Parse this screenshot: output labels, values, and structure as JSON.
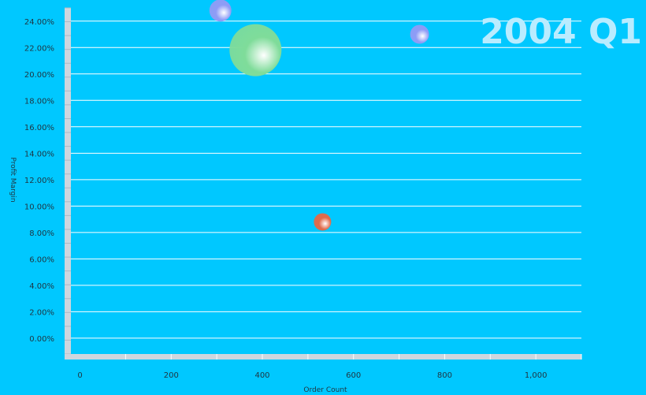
{
  "chart_data": {
    "type": "scatter",
    "subtype": "bubble",
    "period_label": "2004 Q1",
    "xlabel": "Order Count",
    "ylabel": "Profit Margin",
    "xlim": [
      -20,
      1100
    ],
    "ylim": [
      -1.2,
      25
    ],
    "x_ticks": [
      0,
      200,
      400,
      600,
      800,
      1000
    ],
    "x_tick_labels": [
      "0",
      "200",
      "400",
      "600",
      "800",
      "1,000"
    ],
    "y_ticks": [
      0,
      2,
      4,
      6,
      8,
      10,
      12,
      14,
      16,
      18,
      20,
      22,
      24
    ],
    "y_tick_labels": [
      "0.00%",
      "2.00%",
      "4.00%",
      "6.00%",
      "8.00%",
      "10.00%",
      "12.00%",
      "14.00%",
      "16.00%",
      "18.00%",
      "20.00%",
      "22.00%",
      "24.00%"
    ],
    "grid": true,
    "points": [
      {
        "x": 308,
        "y": 24.8,
        "size": 14,
        "color": "#8f9cf6"
      },
      {
        "x": 385,
        "y": 21.8,
        "size": 33,
        "color": "#7fdc9a"
      },
      {
        "x": 745,
        "y": 23.0,
        "size": 12,
        "color": "#8f9cf6"
      },
      {
        "x": 532,
        "y": 8.8,
        "size": 11,
        "color": "#e06a4a"
      }
    ],
    "colors": {
      "background": "#00c8ff",
      "axis": "#cfd6de",
      "grid": "#ffffff",
      "period_label": "#b9ecff"
    }
  }
}
